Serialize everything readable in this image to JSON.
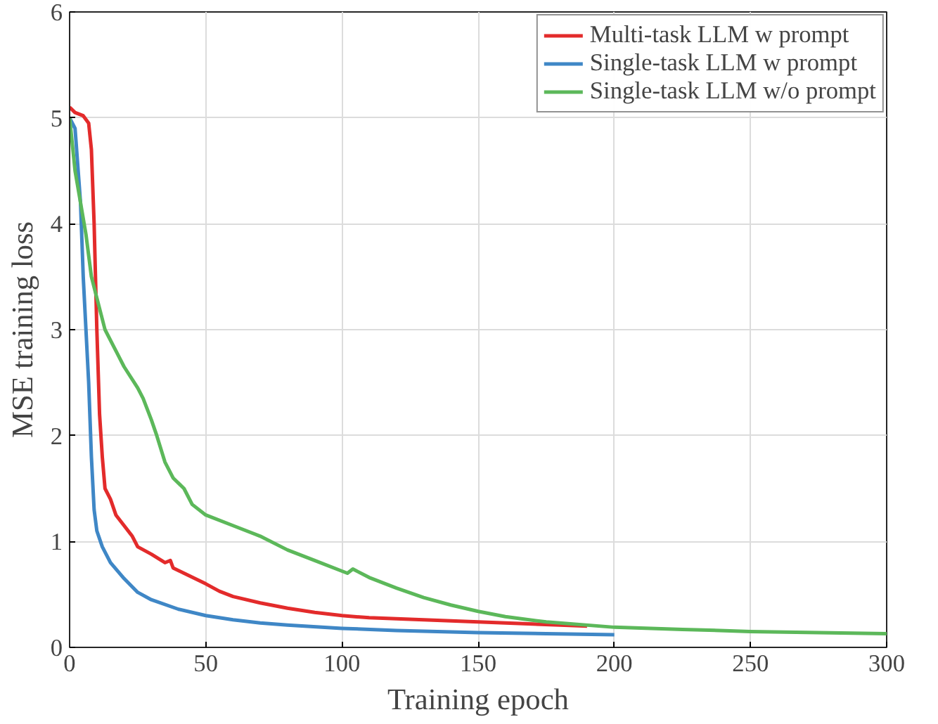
{
  "chart_data": {
    "type": "line",
    "xlabel": "Training epoch",
    "ylabel": "MSE training loss",
    "xlim": [
      0,
      300
    ],
    "ylim": [
      0,
      6
    ],
    "xticks": [
      0,
      50,
      100,
      150,
      200,
      250,
      300
    ],
    "yticks": [
      0,
      1,
      2,
      3,
      4,
      5,
      6
    ],
    "grid": true,
    "legend": "top right",
    "marker": "none",
    "line_style": "solid",
    "series": [
      {
        "name": "Multi-task LLM w prompt",
        "color": "#e32b2b",
        "x": [
          0,
          2,
          5,
          7,
          8,
          9,
          10,
          11,
          12,
          13,
          15,
          17,
          20,
          23,
          25,
          30,
          35,
          37,
          38,
          42,
          50,
          55,
          60,
          70,
          80,
          90,
          100,
          110,
          120,
          130,
          140,
          150,
          160,
          170,
          180,
          190
        ],
        "values": [
          5.1,
          5.05,
          5.02,
          4.95,
          4.7,
          4.0,
          3.0,
          2.2,
          1.8,
          1.5,
          1.4,
          1.25,
          1.15,
          1.05,
          0.95,
          0.88,
          0.8,
          0.82,
          0.75,
          0.7,
          0.6,
          0.53,
          0.48,
          0.42,
          0.37,
          0.33,
          0.3,
          0.28,
          0.27,
          0.26,
          0.25,
          0.24,
          0.23,
          0.22,
          0.21,
          0.2
        ]
      },
      {
        "name": "Single-task LLM w prompt",
        "color": "#3f87c6",
        "x": [
          0,
          2,
          4,
          5,
          6,
          7,
          8,
          9,
          10,
          12,
          15,
          20,
          25,
          30,
          40,
          50,
          60,
          70,
          80,
          100,
          120,
          150,
          175,
          200
        ],
        "values": [
          5.0,
          4.9,
          4.2,
          3.5,
          3.0,
          2.5,
          1.8,
          1.3,
          1.1,
          0.95,
          0.8,
          0.65,
          0.52,
          0.45,
          0.36,
          0.3,
          0.26,
          0.23,
          0.21,
          0.18,
          0.16,
          0.14,
          0.13,
          0.12
        ]
      },
      {
        "name": "Single-task LLM w/o prompt",
        "color": "#5cb85a",
        "x": [
          0,
          2,
          4,
          6,
          8,
          10,
          13,
          17,
          20,
          25,
          27,
          30,
          32,
          35,
          38,
          42,
          45,
          50,
          60,
          70,
          80,
          90,
          100,
          102,
          104,
          110,
          120,
          130,
          140,
          150,
          160,
          175,
          200,
          225,
          250,
          275,
          300
        ],
        "values": [
          5.0,
          4.5,
          4.2,
          3.9,
          3.5,
          3.3,
          3.0,
          2.8,
          2.65,
          2.45,
          2.35,
          2.15,
          2.0,
          1.75,
          1.6,
          1.5,
          1.35,
          1.25,
          1.15,
          1.05,
          0.92,
          0.82,
          0.72,
          0.7,
          0.74,
          0.66,
          0.56,
          0.47,
          0.4,
          0.34,
          0.29,
          0.24,
          0.19,
          0.17,
          0.15,
          0.14,
          0.13
        ]
      }
    ]
  }
}
